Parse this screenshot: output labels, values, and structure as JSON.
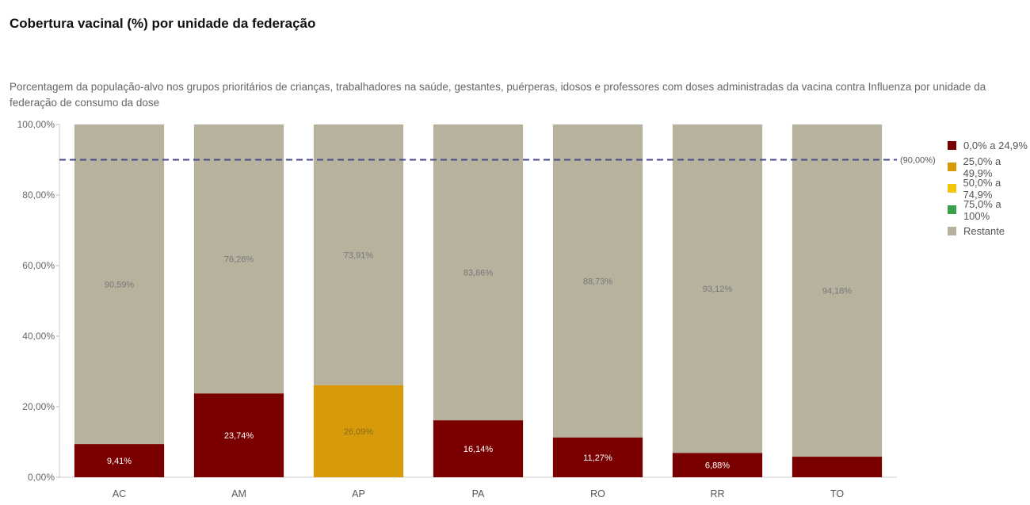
{
  "title": "Cobertura vacinal (%) por unidade da federação",
  "subtitle": "Porcentagem da população-alvo nos grupos prioritários de crianças, trabalhadores na saúde, gestantes, puérperas, idosos e professores com doses administradas da vacina contra Influenza por unidade da federação de consumo da dose",
  "legend": [
    {
      "label": "0,0% a 24,9%",
      "color": "#7a0000"
    },
    {
      "label": "25,0% a 49,9%",
      "color": "#d69a0b"
    },
    {
      "label": "50,0% a 74,9%",
      "color": "#f2c40a"
    },
    {
      "label": "75,0% a 100%",
      "color": "#3aa04a"
    },
    {
      "label": "Restante",
      "color": "#b6b29e"
    }
  ],
  "chart_data": {
    "type": "bar",
    "stacked": true,
    "categories": [
      "AC",
      "AM",
      "AP",
      "PA",
      "RO",
      "RR",
      "TO"
    ],
    "series": [
      {
        "name": "Cobertura",
        "values": [
          9.41,
          23.74,
          26.09,
          16.14,
          11.27,
          6.88,
          5.82
        ],
        "labels": [
          "9,41%",
          "23,74%",
          "26,09%",
          "16,14%",
          "11,27%",
          "6,88%",
          ""
        ],
        "colors": [
          "#7a0000",
          "#7a0000",
          "#d69a0b",
          "#7a0000",
          "#7a0000",
          "#7a0000",
          "#7a0000"
        ]
      },
      {
        "name": "Restante",
        "values": [
          90.59,
          76.26,
          73.91,
          83.86,
          88.73,
          93.12,
          94.18
        ],
        "labels": [
          "90,59%",
          "76,26%",
          "73,91%",
          "83,86%",
          "88,73%",
          "93,12%",
          "94,18%"
        ],
        "color": "#b6b29e"
      }
    ],
    "ylim": [
      0,
      100
    ],
    "yticks": [
      0,
      20,
      40,
      60,
      80,
      100
    ],
    "ytick_labels": [
      "0,00%",
      "20,00%",
      "40,00%",
      "60,00%",
      "80,00%",
      "100,00%"
    ],
    "reference_line": {
      "value": 90,
      "label": "(90,00%)",
      "color": "#4a4a8a"
    },
    "legend_position": "right",
    "grid": false
  }
}
